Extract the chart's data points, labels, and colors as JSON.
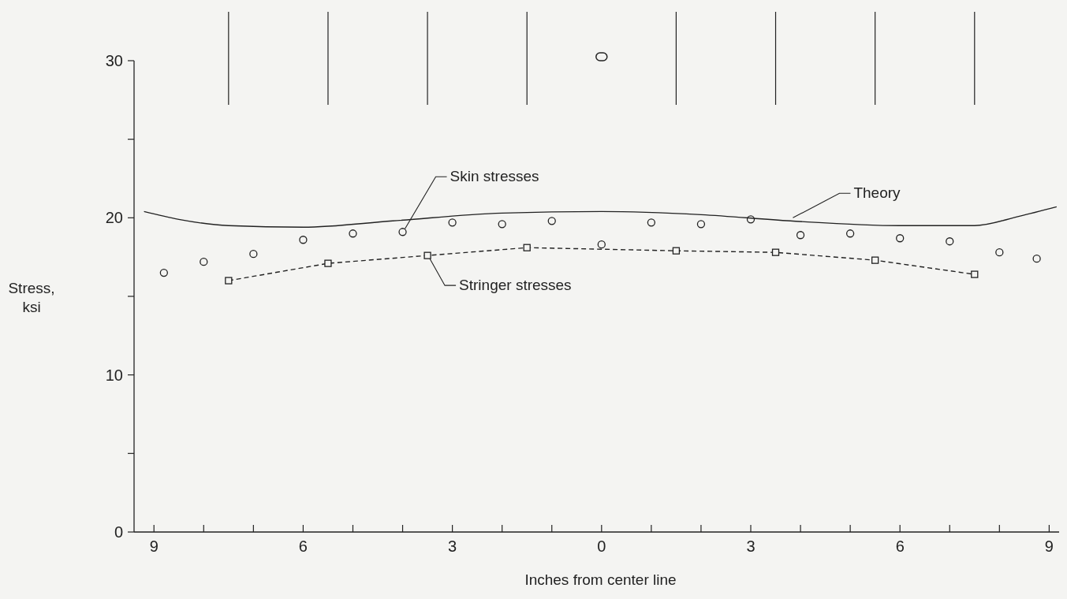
{
  "chart_data": {
    "type": "scatter",
    "xlabel": "Inches from center line",
    "ylabel": "Stress, ksi",
    "xlim": [
      -9.4,
      9.2
    ],
    "ylim": [
      0,
      30
    ],
    "xticks": [
      {
        "value": -9,
        "label": "9"
      },
      {
        "value": -8,
        "label": null
      },
      {
        "value": -7,
        "label": null
      },
      {
        "value": -6,
        "label": "6"
      },
      {
        "value": -5,
        "label": null
      },
      {
        "value": -4,
        "label": null
      },
      {
        "value": -3,
        "label": "3"
      },
      {
        "value": -2,
        "label": null
      },
      {
        "value": -1,
        "label": null
      },
      0,
      {
        "value": 1,
        "label": null
      },
      {
        "value": 2,
        "label": null
      },
      {
        "value": 3,
        "label": "3"
      },
      {
        "value": 4,
        "label": null
      },
      {
        "value": 5,
        "label": null
      },
      {
        "value": 6,
        "label": "6"
      },
      {
        "value": 7,
        "label": null
      },
      {
        "value": 8,
        "label": null
      },
      {
        "value": 9,
        "label": "9"
      }
    ],
    "yticks": [
      0,
      {
        "value": 5,
        "label": null
      },
      10,
      {
        "value": 15,
        "label": null
      },
      20,
      {
        "value": 25,
        "label": null
      },
      30
    ],
    "grid": false,
    "series": [
      {
        "type": "line",
        "color": "#222222",
        "marker": "none",
        "line_style": "solid",
        "x": [
          -9.2,
          -8.5,
          -7.5,
          -6,
          -4.2,
          -2,
          0,
          2,
          3.8,
          6,
          7.5,
          8.4,
          9.15
        ],
        "values": [
          20.4,
          19.9,
          19.5,
          19.4,
          19.8,
          20.3,
          20.4,
          20.2,
          19.8,
          19.5,
          19.5,
          20.1,
          20.7
        ]
      },
      {
        "color": "#222222",
        "marker": "circle",
        "x": [
          -8.8,
          -8,
          -7,
          -6,
          -5,
          -4,
          -3,
          -2,
          -1,
          0,
          1,
          2,
          3,
          4,
          5,
          6,
          7,
          8,
          8.75
        ],
        "values": [
          16.5,
          17.2,
          17.7,
          18.6,
          19.0,
          19.1,
          19.7,
          19.6,
          19.8,
          18.3,
          19.7,
          19.6,
          19.9,
          18.9,
          19.0,
          18.7,
          18.5,
          17.8,
          17.4
        ]
      },
      {
        "type": "line",
        "color": "#222222",
        "marker": "square",
        "line_style": "dashed",
        "x": [
          -7.5,
          -5.5,
          -3.5,
          -1.5,
          1.5,
          3.5,
          5.5,
          7.5
        ],
        "values": [
          16.0,
          17.1,
          17.6,
          18.1,
          17.9,
          17.8,
          17.3,
          16.4
        ]
      }
    ],
    "annotations": [
      {
        "text": "Skin stresses",
        "x": -4,
        "y": 19.1
      },
      {
        "text": "Theory",
        "x": 3.8,
        "y": 19.8
      },
      {
        "text": "Stringer stresses",
        "x": -3.5,
        "y": 17.6
      }
    ]
  }
}
